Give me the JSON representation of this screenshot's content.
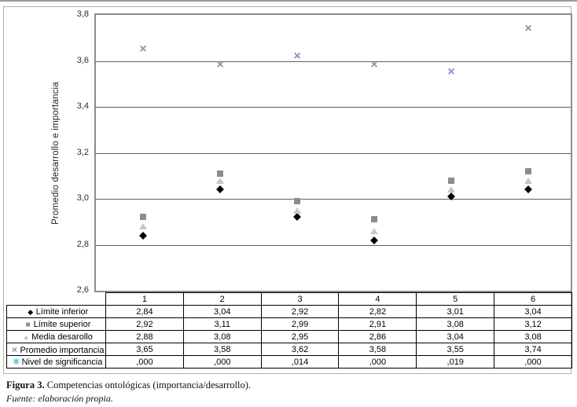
{
  "figure": {
    "caption_label": "Figura 3.",
    "caption_text": "Competencias ontológicas (importancia/desarrollo).",
    "source": "Fuente: elaboración propia."
  },
  "chart_data": {
    "type": "scatter",
    "title": "",
    "xlabel": "",
    "ylabel": "Promedio desarrollo e importancia",
    "ylim": [
      2.6,
      3.8
    ],
    "ytick_labels": [
      "3,8",
      "3,6",
      "3,4",
      "3,2",
      "3,0",
      "2,8",
      "2,6"
    ],
    "grid": true,
    "legend_position": "table-left",
    "categories": [
      "1",
      "2",
      "3",
      "4",
      "5",
      "6"
    ],
    "series": [
      {
        "name": "Límite inferior",
        "marker": "diamond",
        "color": "#000000",
        "values": [
          2.84,
          3.04,
          2.92,
          2.82,
          3.01,
          3.04
        ],
        "labels": [
          "2,84",
          "3,04",
          "2,92",
          "2,82",
          "3,01",
          "3,04"
        ],
        "plotted": true
      },
      {
        "name": "Límite superior",
        "marker": "square",
        "color": "#8c8c8c",
        "values": [
          2.92,
          3.11,
          2.99,
          2.91,
          3.08,
          3.12
        ],
        "labels": [
          "2,92",
          "3,11",
          "2,99",
          "2,91",
          "3,08",
          "3,12"
        ],
        "plotted": true
      },
      {
        "name": "Media desarollo",
        "marker": "triangle",
        "color": "#c6c6c6",
        "values": [
          2.88,
          3.08,
          2.95,
          2.86,
          3.04,
          3.08
        ],
        "labels": [
          "2,88",
          "3,08",
          "2,95",
          "2,86",
          "3,04",
          "3,08"
        ],
        "plotted": true
      },
      {
        "name": "Promedio importancia",
        "marker": "x",
        "color": "#8e8ebc",
        "values": [
          3.65,
          3.58,
          3.62,
          3.58,
          3.55,
          3.74
        ],
        "labels": [
          "3,65",
          "3,58",
          "3,62",
          "3,58",
          "3,55",
          "3,74"
        ],
        "plotted": true
      },
      {
        "name": "Nivel de significancia",
        "marker": "asterisk",
        "color": "#4fbcd6",
        "values": [
          0.0,
          0.0,
          0.014,
          0.0,
          0.019,
          0.0
        ],
        "labels": [
          ",000",
          ",000",
          ",014",
          ",000",
          ",019",
          ",000"
        ],
        "plotted": false
      }
    ]
  }
}
